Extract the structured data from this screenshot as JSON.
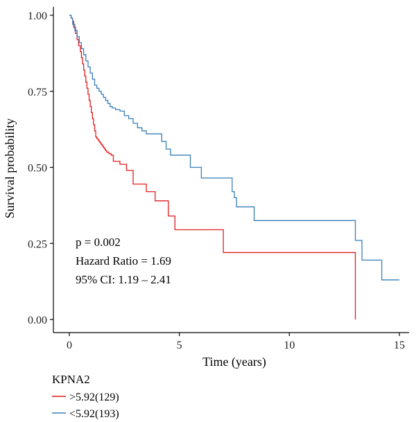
{
  "chart_data": {
    "type": "line",
    "xlabel": "Time (years)",
    "ylabel": "Survival probability",
    "xlim": [
      0,
      15
    ],
    "ylim": [
      0,
      1
    ],
    "x_ticks": [
      "0",
      "5",
      "10",
      "15"
    ],
    "y_ticks": [
      "0.00",
      "0.25",
      "0.50",
      "0.75",
      "1.00"
    ],
    "grid": false,
    "legend_title": "KPNA2",
    "legend_position": "bottom-left",
    "annotations": [
      "p = 0.002",
      "Hazard Ratio = 1.69",
      "95% CI: 1.19 – 2.41"
    ],
    "series": [
      {
        "name": ">5.92(129)",
        "color": "#e41a1c",
        "x": [
          0,
          0.08,
          0.15,
          0.2,
          0.28,
          0.35,
          0.42,
          0.5,
          0.55,
          0.6,
          0.65,
          0.7,
          0.75,
          0.8,
          0.85,
          0.9,
          0.95,
          1.0,
          1.05,
          1.1,
          1.15,
          1.2,
          1.25,
          1.3,
          1.35,
          1.4,
          1.45,
          1.5,
          1.55,
          1.6,
          1.65,
          1.7,
          1.8,
          1.9,
          2.0,
          2.3,
          2.6,
          2.9,
          3.0,
          3.5,
          3.9,
          4.5,
          4.8,
          7.0,
          13.0
        ],
        "y": [
          1.0,
          0.99,
          0.98,
          0.96,
          0.94,
          0.92,
          0.9,
          0.88,
          0.86,
          0.84,
          0.82,
          0.8,
          0.78,
          0.76,
          0.74,
          0.72,
          0.7,
          0.68,
          0.66,
          0.64,
          0.62,
          0.6,
          0.595,
          0.59,
          0.585,
          0.58,
          0.575,
          0.57,
          0.565,
          0.56,
          0.555,
          0.55,
          0.545,
          0.54,
          0.52,
          0.51,
          0.49,
          0.445,
          0.445,
          0.42,
          0.39,
          0.34,
          0.295,
          0.22,
          0.0
        ]
      },
      {
        "name": "<5.92(193)",
        "color": "#377eb8",
        "x": [
          0,
          0.08,
          0.15,
          0.25,
          0.35,
          0.45,
          0.55,
          0.65,
          0.75,
          0.85,
          0.95,
          1.05,
          1.15,
          1.25,
          1.35,
          1.45,
          1.55,
          1.65,
          1.75,
          1.85,
          1.95,
          2.1,
          2.3,
          2.5,
          2.7,
          2.9,
          3.1,
          3.3,
          3.5,
          4.2,
          4.4,
          4.6,
          4.9,
          5.5,
          6.0,
          7.4,
          7.5,
          7.6,
          8.4,
          13.0,
          13.3,
          14.2,
          15.0
        ],
        "y": [
          1.0,
          0.99,
          0.97,
          0.95,
          0.93,
          0.91,
          0.89,
          0.87,
          0.85,
          0.83,
          0.81,
          0.79,
          0.77,
          0.76,
          0.75,
          0.74,
          0.73,
          0.72,
          0.71,
          0.7,
          0.695,
          0.69,
          0.685,
          0.67,
          0.66,
          0.645,
          0.63,
          0.62,
          0.61,
          0.585,
          0.56,
          0.54,
          0.54,
          0.5,
          0.465,
          0.42,
          0.4,
          0.37,
          0.325,
          0.26,
          0.195,
          0.13,
          0.13
        ]
      }
    ]
  }
}
